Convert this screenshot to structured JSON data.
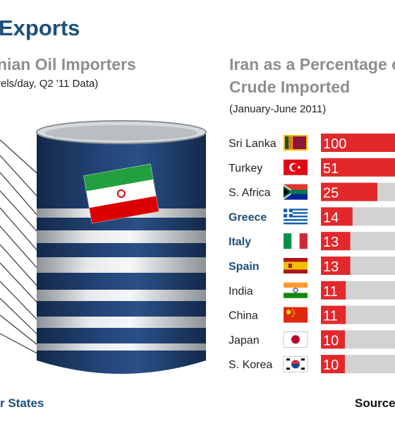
{
  "header": {
    "title": "Exports",
    "left_title": "nian Oil Importers",
    "left_subtitle": "rels/day, Q2 '11 Data)",
    "right_title_line1": "Iran as a Percentage of",
    "right_title_line2": "Crude Imported",
    "right_subtitle": "(January-June 2011)"
  },
  "footer": {
    "left": "r States",
    "right": "Source"
  },
  "colors": {
    "title_blue": "#1d4f7a",
    "bar_red": "#e3282b",
    "bar_gray": "#d2d2d2",
    "barrel_blue": "#1c3a66",
    "barrel_silver": "#c8ccd0"
  },
  "chart_data": {
    "type": "bar",
    "orientation": "horizontal",
    "title": "Iran as a Percentage of Crude Imported",
    "subtitle": "(January-June 2011)",
    "xlim": [
      0,
      100
    ],
    "categories": [
      "Sri Lanka",
      "Turkey",
      "S. Africa",
      "Greece",
      "Italy",
      "Spain",
      "India",
      "China",
      "Japan",
      "S. Korea"
    ],
    "highlighted": [
      false,
      false,
      false,
      true,
      true,
      true,
      false,
      false,
      false,
      false
    ],
    "flag_icons": [
      "flag-sri-lanka-icon",
      "flag-turkey-icon",
      "flag-south-africa-icon",
      "flag-greece-icon",
      "flag-italy-icon",
      "flag-spain-icon",
      "flag-india-icon",
      "flag-china-icon",
      "flag-japan-icon",
      "flag-south-korea-icon"
    ],
    "series": [
      {
        "values": [
          100,
          51,
          25,
          14,
          13,
          13,
          11,
          11,
          10,
          10
        ]
      }
    ]
  }
}
